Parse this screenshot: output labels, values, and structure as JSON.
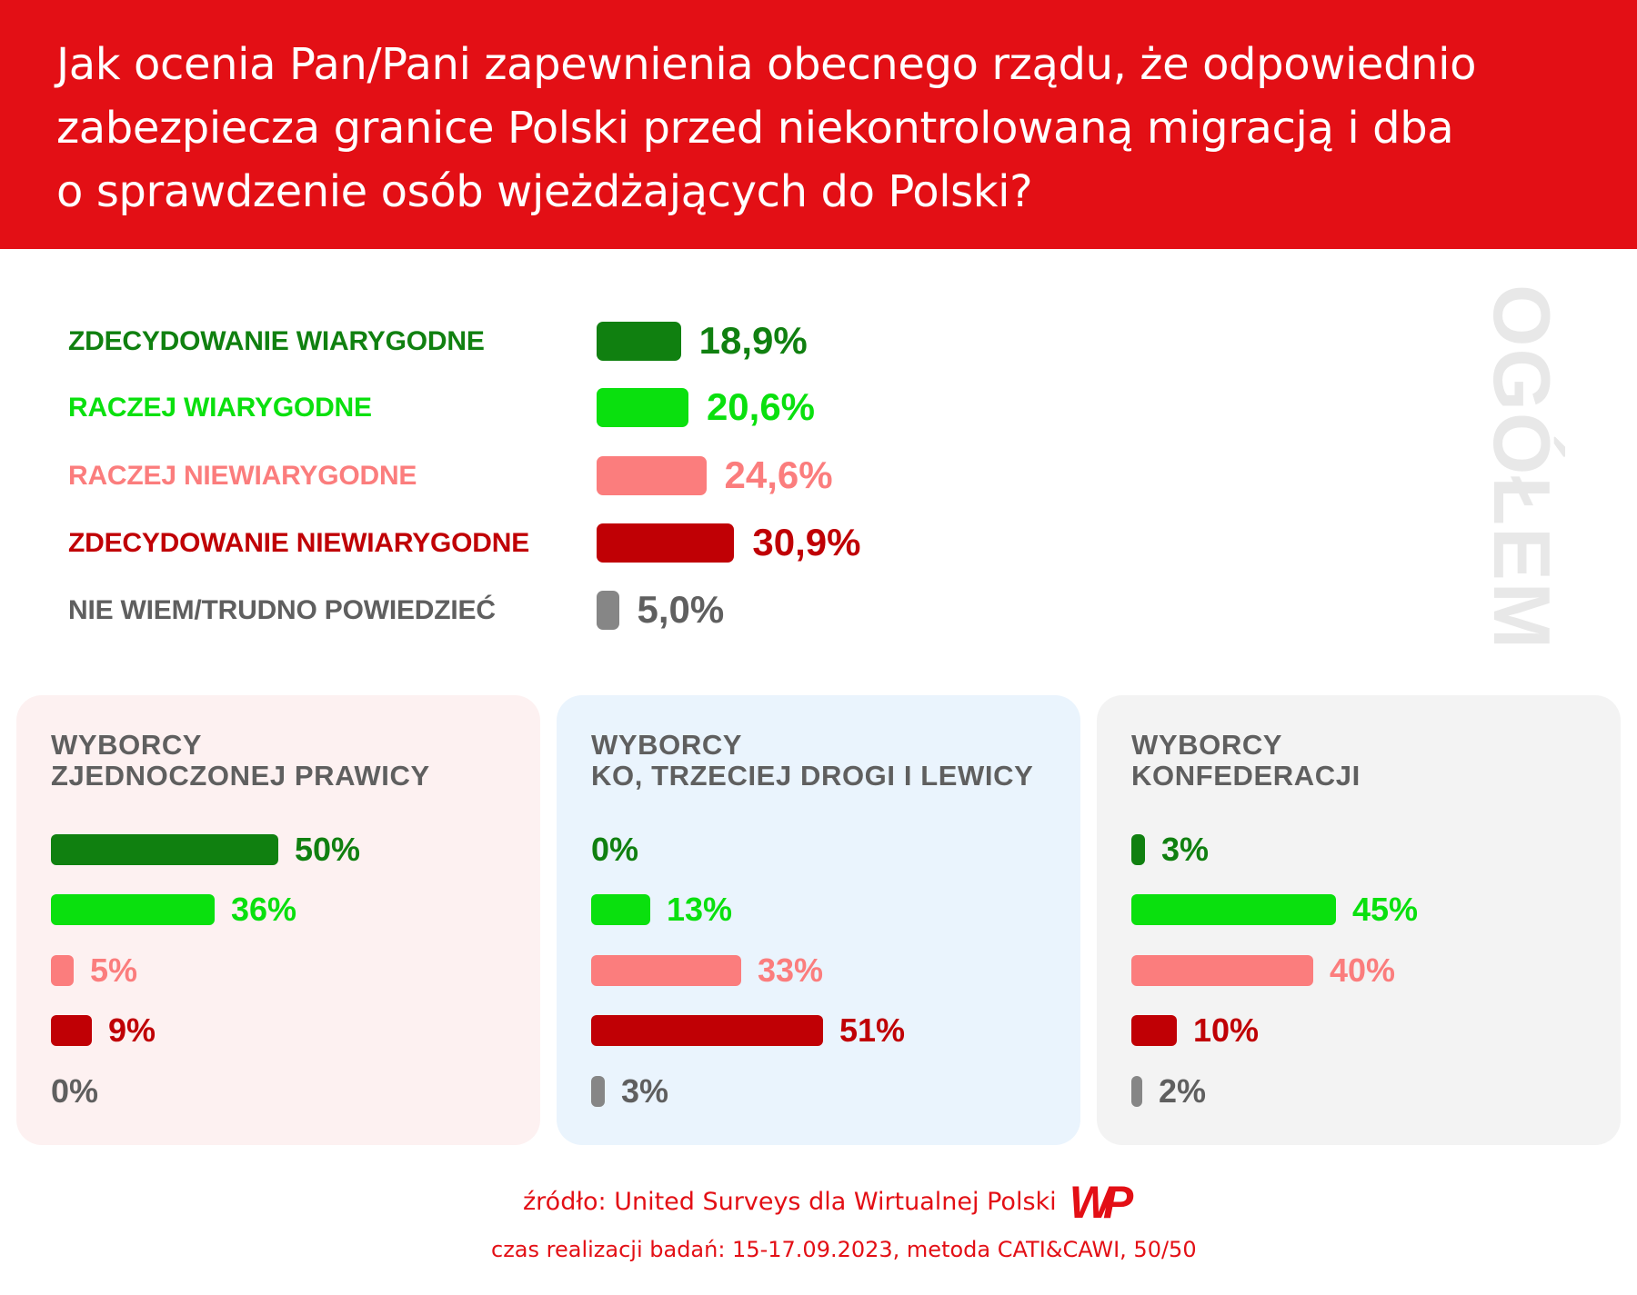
{
  "header": {
    "title_lines": [
      "Jak ocenia Pan/Pani zapewnienia obecnego rządu, że odpowiednio",
      "zabezpiecza granice Polski przed niekontrolowaną migracją i dba",
      "o sprawdzenie osób wjeżdżających do Polski?"
    ]
  },
  "side_label": "OGÓŁEM",
  "colors": {
    "header_bg": "#e30f15",
    "strongly_credible": "#108010",
    "rather_credible": "#0ae00e",
    "rather_not_credible": "#fb7d7d",
    "strongly_not_credible": "#c00005",
    "dont_know": "#868686",
    "dont_know_text": "#5f5f5f",
    "panel_right": "#fdf1f1",
    "panel_center": "#eaf4fd",
    "panel_conf": "#f3f3f3",
    "side_label": "#e8e8e8"
  },
  "chart_data": [
    {
      "type": "bar",
      "orientation": "horizontal",
      "title": "OGÓŁEM",
      "categories": [
        "ZDECYDOWANIE WIARYGODNE",
        "RACZEJ WIARYGODNE",
        "RACZEJ NIEWIARYGODNE",
        "ZDECYDOWANIE NIEWIARYGODNE",
        "NIE WIEM/TRUDNO POWIEDZIEĆ"
      ],
      "values": [
        18.9,
        20.6,
        24.6,
        30.9,
        5.0
      ],
      "value_labels": [
        "18,9%",
        "20,6%",
        "24,6%",
        "30,9%",
        "5,0%"
      ],
      "unit": "%"
    },
    {
      "type": "bar",
      "orientation": "horizontal",
      "title_lines": [
        "WYBORCY",
        "ZJEDNOCZONEJ PRAWICY"
      ],
      "values": [
        50,
        36,
        5,
        9,
        0
      ],
      "value_labels": [
        "50%",
        "36%",
        "5%",
        "9%",
        "0%"
      ],
      "unit": "%"
    },
    {
      "type": "bar",
      "orientation": "horizontal",
      "title_lines": [
        "WYBORCY",
        "KO, TRZECIEJ DROGI I LEWICY"
      ],
      "values": [
        0,
        13,
        33,
        51,
        3
      ],
      "value_labels": [
        "0%",
        "13%",
        "33%",
        "51%",
        "3%"
      ],
      "unit": "%"
    },
    {
      "type": "bar",
      "orientation": "horizontal",
      "title_lines": [
        "WYBORCY",
        "KONFEDERACJI"
      ],
      "values": [
        3,
        45,
        40,
        10,
        2
      ],
      "value_labels": [
        "3%",
        "45%",
        "40%",
        "10%",
        "2%"
      ],
      "unit": "%"
    }
  ],
  "footer": {
    "source": "źródło: United Surveys dla Wirtualnej Polski",
    "method": "czas realizacji badań: 15-17.09.2023, metoda CATI&CAWI, 50/50",
    "logo_text": "WP"
  }
}
